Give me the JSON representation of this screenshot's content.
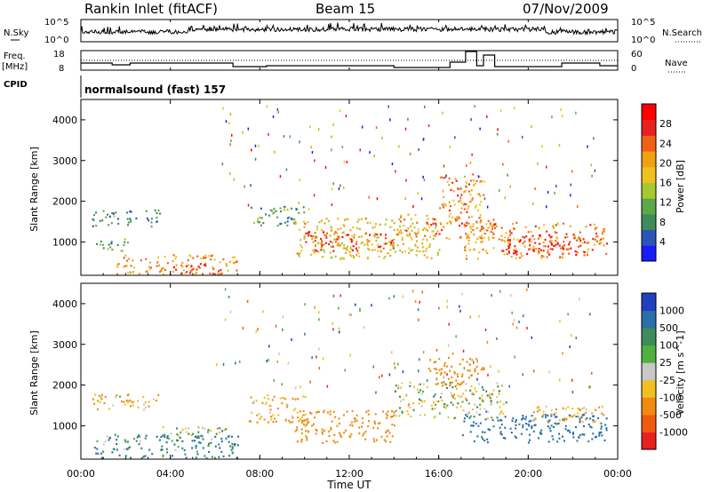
{
  "header": {
    "station": "Rankin Inlet (fitACF)",
    "beam": "Beam 15",
    "date": "07/Nov/2009"
  },
  "panels": {
    "noise_left_label": "N.Sky",
    "noise_right_label": "N.Search",
    "noise_ticks": [
      "10^5",
      "10^0"
    ],
    "freq_label_1": "Freq.",
    "freq_label_2": "[MHz]",
    "freq_ticks": [
      "18",
      "8"
    ],
    "nave_label": "Nave",
    "nave_ticks": [
      "60",
      "0"
    ],
    "cpid_label": "CPID",
    "cpid_text": "normalsound (fast) 157"
  },
  "axes": {
    "ylabel": "Slant Range [km]",
    "xlabel": "Time UT",
    "xticks": [
      "00:00",
      "04:00",
      "08:00",
      "12:00",
      "16:00",
      "20:00",
      "00:00"
    ],
    "yticks": [
      "1000",
      "2000",
      "3000",
      "4000"
    ]
  },
  "colorbars": {
    "power": {
      "label": "Power [dB]",
      "ticks": [
        "4",
        "8",
        "12",
        "16",
        "20",
        "24",
        "28"
      ],
      "colors": [
        "#1a1aff",
        "#2a55b8",
        "#3d8c5a",
        "#5ca84a",
        "#a8c830",
        "#f0c020",
        "#f0a010",
        "#f06018",
        "#e82020",
        "#ff0000"
      ]
    },
    "velocity": {
      "label": "Velocity [m s^-1]",
      "ticks": [
        "1000",
        "500",
        "100",
        "25",
        "-25",
        "-100",
        "-500",
        "-1000"
      ],
      "colors": [
        "#2040c0",
        "#2a70a8",
        "#3d8c5a",
        "#50b040",
        "#c8c8c8",
        "#f0c020",
        "#f08a10",
        "#f05a10",
        "#e82020"
      ]
    }
  },
  "chart_data": {
    "type": "heatmap",
    "title": "Rankin Inlet (fitACF)",
    "xlabel": "Time UT",
    "ylabel": "Slant Range [km]",
    "xlim": [
      "00:00",
      "24:00"
    ],
    "ylim": [
      180,
      4500
    ],
    "xticks": [
      "00:00",
      "04:00",
      "08:00",
      "12:00",
      "16:00",
      "20:00",
      "00:00"
    ],
    "yticks": [
      1000,
      2000,
      3000,
      4000
    ],
    "panels": [
      {
        "name": "Power [dB]",
        "colorbar_range": [
          0,
          32
        ],
        "regions": [
          {
            "t0": 0.5,
            "t1": 3.5,
            "r0": 1400,
            "r1": 1800,
            "value": 8
          },
          {
            "t0": 0.5,
            "t1": 2.2,
            "r0": 800,
            "r1": 1100,
            "value": 10
          },
          {
            "t0": 1.5,
            "t1": 7.0,
            "r0": 200,
            "r1": 700,
            "value": 20
          },
          {
            "t0": 4.0,
            "t1": 6.5,
            "r0": 200,
            "r1": 500,
            "value": 26
          },
          {
            "t0": 7.5,
            "t1": 10.0,
            "r0": 1400,
            "r1": 1900,
            "value": 10
          },
          {
            "t0": 9.5,
            "t1": 16.0,
            "r0": 600,
            "r1": 1600,
            "value": 18
          },
          {
            "t0": 10.0,
            "t1": 14.0,
            "r0": 800,
            "r1": 1300,
            "value": 26
          },
          {
            "t0": 16.0,
            "t1": 18.0,
            "r0": 1700,
            "r1": 2700,
            "value": 22
          },
          {
            "t0": 14.0,
            "t1": 18.5,
            "r0": 1100,
            "r1": 1700,
            "value": 22
          },
          {
            "t0": 17.0,
            "t1": 23.5,
            "r0": 600,
            "r1": 1500,
            "value": 22
          },
          {
            "t0": 19.0,
            "t1": 22.5,
            "r0": 700,
            "r1": 1200,
            "value": 28
          }
        ]
      },
      {
        "name": "Velocity [m s^-1]",
        "colorbar_range": [
          -1000,
          1000
        ],
        "regions": [
          {
            "t0": 0.5,
            "t1": 3.5,
            "r0": 1400,
            "r1": 1800,
            "value": -100
          },
          {
            "t0": 0.5,
            "t1": 7.0,
            "r0": 200,
            "r1": 800,
            "value": 100
          },
          {
            "t0": 3.5,
            "t1": 6.5,
            "r0": 700,
            "r1": 1000,
            "value": 0
          },
          {
            "t0": 7.5,
            "t1": 10.0,
            "r0": 1100,
            "r1": 1800,
            "value": -100
          },
          {
            "t0": 9.5,
            "t1": 14.0,
            "r0": 600,
            "r1": 1400,
            "value": -300
          },
          {
            "t0": 14.0,
            "t1": 19.0,
            "r0": 1200,
            "r1": 2100,
            "value": 0
          },
          {
            "t0": 15.5,
            "t1": 18.0,
            "r0": 2000,
            "r1": 2700,
            "value": -300
          },
          {
            "t0": 17.0,
            "t1": 23.5,
            "r0": 600,
            "r1": 1300,
            "value": 200
          },
          {
            "t0": 20.0,
            "t1": 23.5,
            "r0": 1100,
            "r1": 1500,
            "value": -100
          }
        ]
      }
    ]
  }
}
